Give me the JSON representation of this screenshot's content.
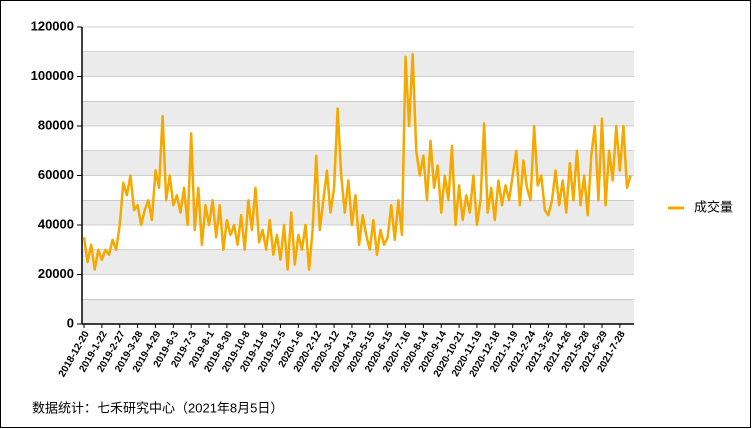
{
  "chart_data": {
    "type": "line",
    "source": "数据统计：七禾研究中心（2021年8月5日）",
    "categories": [
      "2018-12-20",
      null,
      null,
      null,
      null,
      "2019-1-22",
      null,
      null,
      null,
      null,
      "2019-2-27",
      null,
      null,
      null,
      null,
      "2019-3-28",
      null,
      null,
      null,
      null,
      "2019-4-29",
      null,
      null,
      null,
      null,
      "2019-6-3",
      null,
      null,
      null,
      null,
      "2019-7-3",
      null,
      null,
      null,
      null,
      "2019-8-1",
      null,
      null,
      null,
      null,
      "2019-8-30",
      null,
      null,
      null,
      null,
      "2019-10-8",
      null,
      null,
      null,
      null,
      "2019-11-6",
      null,
      null,
      null,
      null,
      "2019-12-5",
      null,
      null,
      null,
      null,
      "2020-1-6",
      null,
      null,
      null,
      null,
      "2020-2-12",
      null,
      null,
      null,
      null,
      "2020-3-12",
      null,
      null,
      null,
      null,
      "2020-4-13",
      null,
      null,
      null,
      null,
      "2020-5-15",
      null,
      null,
      null,
      null,
      "2020-6-15",
      null,
      null,
      null,
      null,
      "2020-7-16",
      null,
      null,
      null,
      null,
      "2020-8-14",
      null,
      null,
      null,
      null,
      "2020-9-14",
      null,
      null,
      null,
      null,
      "2020-10-21",
      null,
      null,
      null,
      null,
      "2020-11-19",
      null,
      null,
      null,
      null,
      "2020-12-18",
      null,
      null,
      null,
      null,
      "2021-1-19",
      null,
      null,
      null,
      null,
      "2021-2-24",
      null,
      null,
      null,
      null,
      "2021-3-25",
      null,
      null,
      null,
      null,
      "2021-4-26",
      null,
      null,
      null,
      null,
      "2021-5-28",
      null,
      null,
      null,
      null,
      "2021-6-29",
      null,
      null,
      null,
      null,
      "2021-7-28",
      null,
      null,
      null
    ],
    "series": [
      {
        "name": "成交量",
        "color": "#f5a800",
        "values": [
          35000,
          25000,
          32000,
          22000,
          30000,
          26000,
          30000,
          28000,
          34000,
          30000,
          40000,
          57000,
          52000,
          60000,
          46000,
          48000,
          40000,
          46000,
          50000,
          42000,
          62000,
          55000,
          84000,
          50000,
          60000,
          48000,
          52000,
          45000,
          55000,
          40000,
          77000,
          38000,
          55000,
          32000,
          48000,
          40000,
          50000,
          35000,
          48000,
          30000,
          42000,
          36000,
          40000,
          32000,
          44000,
          30000,
          50000,
          38000,
          55000,
          33000,
          38000,
          30000,
          42000,
          28000,
          36000,
          26000,
          40000,
          22000,
          45000,
          24000,
          36000,
          30000,
          40000,
          22000,
          38000,
          68000,
          38000,
          50000,
          62000,
          45000,
          55000,
          87000,
          60000,
          45000,
          58000,
          40000,
          52000,
          32000,
          44000,
          36000,
          30000,
          42000,
          28000,
          38000,
          32000,
          35000,
          48000,
          34000,
          50000,
          36000,
          108000,
          80000,
          109000,
          70000,
          60000,
          68000,
          50000,
          74000,
          55000,
          64000,
          45000,
          60000,
          50000,
          72000,
          40000,
          56000,
          42000,
          52000,
          45000,
          60000,
          40000,
          50000,
          81000,
          45000,
          55000,
          42000,
          58000,
          48000,
          56000,
          50000,
          60000,
          70000,
          48000,
          66000,
          55000,
          50000,
          80000,
          56000,
          60000,
          46000,
          44000,
          50000,
          62000,
          48000,
          58000,
          45000,
          65000,
          50000,
          70000,
          48000,
          60000,
          44000,
          68000,
          80000,
          50000,
          83000,
          48000,
          70000,
          58000,
          80000,
          62000,
          80000,
          55000,
          60000
        ]
      }
    ],
    "ylim": [
      0,
      120000
    ],
    "yticks": [
      0,
      20000,
      40000,
      60000,
      80000,
      100000,
      120000
    ],
    "minor_yticks": [
      10000,
      30000,
      50000,
      70000,
      90000,
      110000
    ],
    "grid": true,
    "legend": "right"
  }
}
